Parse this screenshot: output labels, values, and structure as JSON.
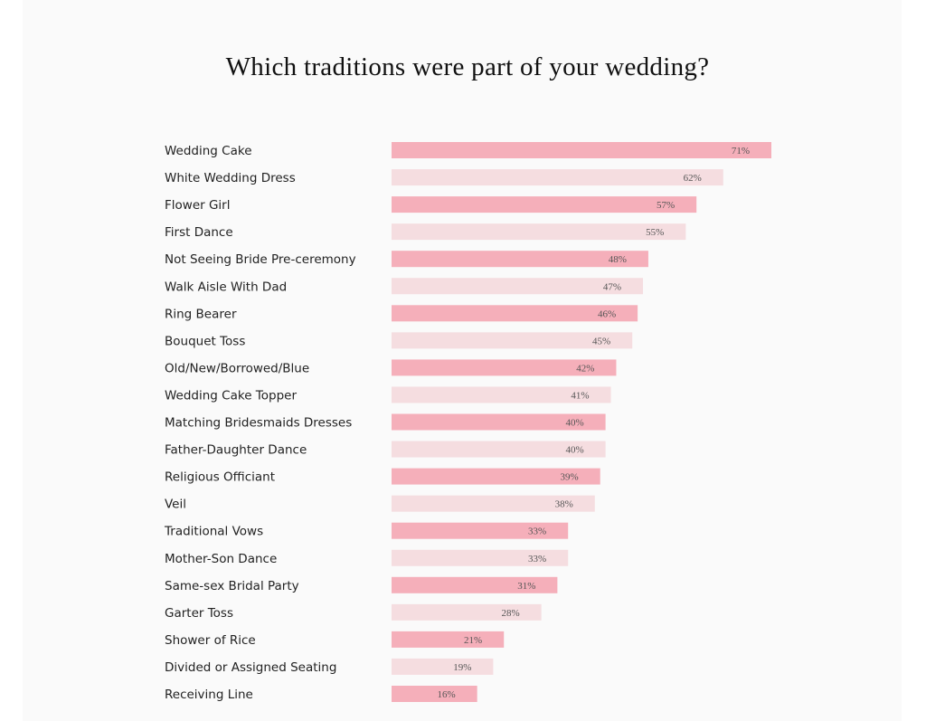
{
  "chart_data": {
    "type": "bar",
    "orientation": "horizontal",
    "title": "Which traditions were part of your wedding?",
    "categories": [
      "Wedding Cake",
      "White Wedding Dress",
      "Flower Girl",
      "First Dance",
      "Not Seeing Bride Pre-ceremony",
      "Walk Aisle With Dad",
      "Ring Bearer",
      "Bouquet Toss",
      "Old/New/Borrowed/Blue",
      "Wedding Cake Topper",
      "Matching Bridesmaids Dresses",
      "Father-Daughter Dance",
      "Religious Officiant",
      "Veil",
      "Traditional Vows",
      "Mother-Son Dance",
      "Same-sex Bridal Party",
      "Garter Toss",
      "Shower of Rice",
      "Divided or Assigned Seating",
      "Receiving Line"
    ],
    "values": [
      71,
      62,
      57,
      55,
      48,
      47,
      46,
      45,
      42,
      41,
      40,
      40,
      39,
      38,
      33,
      33,
      31,
      28,
      21,
      19,
      16
    ],
    "value_suffix": "%",
    "grid": false,
    "colors": {
      "dark": "#f5afba",
      "light": "#f5dde0"
    }
  }
}
